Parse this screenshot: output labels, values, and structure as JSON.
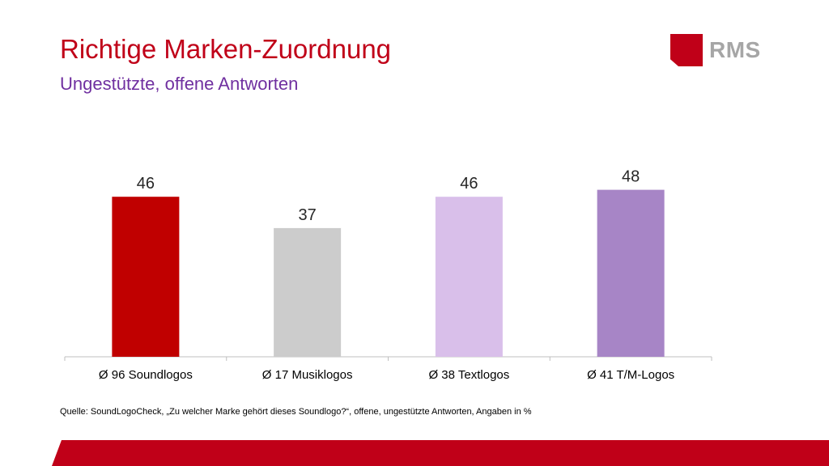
{
  "header": {
    "title": "Richtige Marken-Zuordnung",
    "subtitle": "Ungestützte, offene Antworten"
  },
  "logo": {
    "text": "RMS",
    "color": "#c00018"
  },
  "chart_data": {
    "type": "bar",
    "categories": [
      "Ø 96 Soundlogos",
      "Ø 17 Musiklogos",
      "Ø 38 Textlogos",
      "Ø 41 T/M-Logos"
    ],
    "values": [
      46,
      37,
      46,
      48
    ],
    "data_labels": [
      "46",
      "37",
      "46",
      "48"
    ],
    "colors": [
      "#c00000",
      "#cccccc",
      "#d9bfea",
      "#a785c6"
    ],
    "title": "",
    "xlabel": "",
    "ylabel": "",
    "grid": false,
    "legend": false
  },
  "footer": {
    "source": "Quelle: SoundLogoCheck, „Zu welcher Marke gehört dieses Soundlogo?“, offene, ungestützte Antworten, Angaben in %"
  }
}
